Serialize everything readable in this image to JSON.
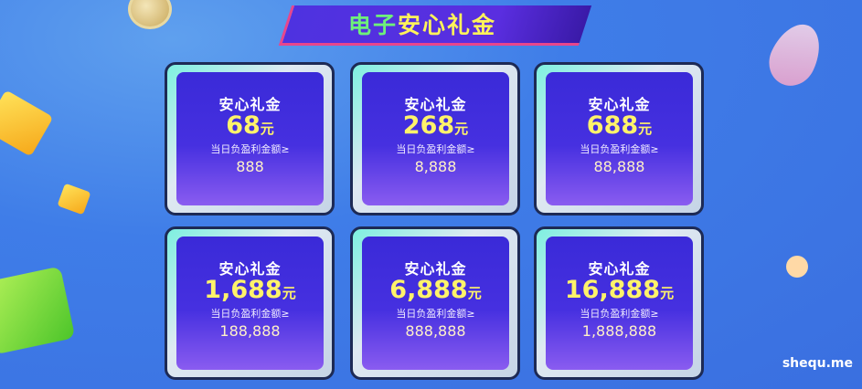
{
  "banner": {
    "title_green": "电子",
    "title_yellow": "安心礼金"
  },
  "cards": [
    {
      "title": "安心礼金",
      "amount": "68",
      "unit": "元",
      "condition": "当日负盈利金额≥",
      "threshold": "888"
    },
    {
      "title": "安心礼金",
      "amount": "268",
      "unit": "元",
      "condition": "当日负盈利金额≥",
      "threshold": "8,888"
    },
    {
      "title": "安心礼金",
      "amount": "688",
      "unit": "元",
      "condition": "当日负盈利金额≥",
      "threshold": "88,888"
    },
    {
      "title": "安心礼金",
      "amount": "1,688",
      "unit": "元",
      "condition": "当日负盈利金额≥",
      "threshold": "188,888"
    },
    {
      "title": "安心礼金",
      "amount": "6,888",
      "unit": "元",
      "condition": "当日负盈利金额≥",
      "threshold": "888,888"
    },
    {
      "title": "安心礼金",
      "amount": "16,888",
      "unit": "元",
      "condition": "当日负盈利金额≥",
      "threshold": "1,888,888"
    }
  ],
  "watermark": "shequ.me"
}
